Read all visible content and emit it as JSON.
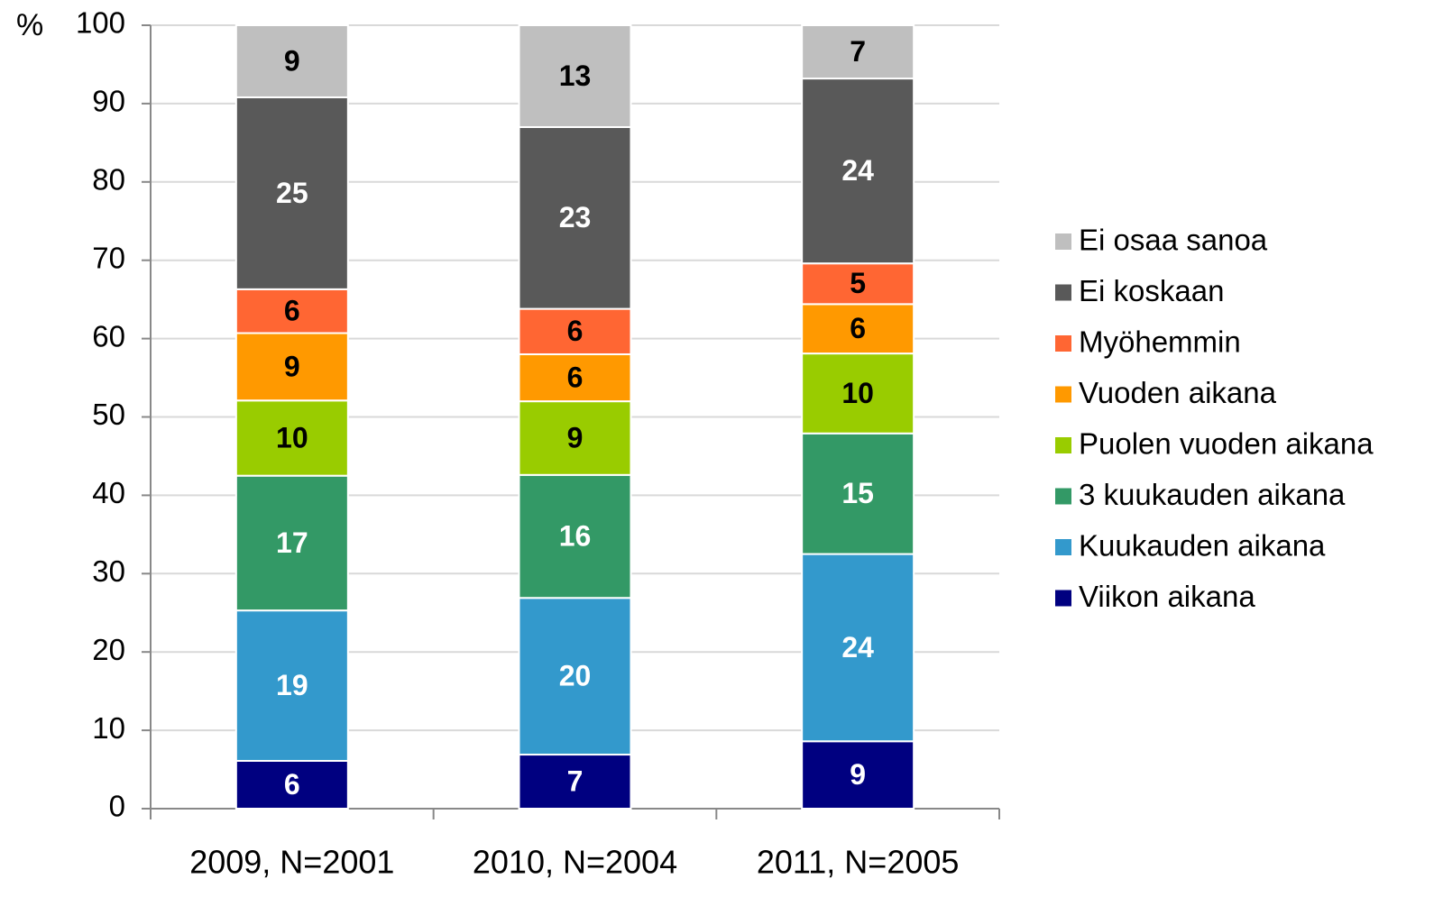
{
  "chart_data": {
    "type": "stacked_bar",
    "y_label": "%",
    "categories": [
      "2009, N=2001",
      "2010, N=2004",
      "2011, N=2005"
    ],
    "ylim": [
      0,
      100
    ],
    "yticks": [
      0,
      10,
      20,
      30,
      40,
      50,
      60,
      70,
      80,
      90,
      100
    ],
    "grid": true,
    "legend": "right",
    "series": [
      {
        "name": "Viikon aikana",
        "color": "#000080",
        "values": [
          6.1,
          6.9,
          8.6
        ],
        "value_labels": [
          "6",
          "7",
          "9"
        ]
      },
      {
        "name": "Kuukauden aikana",
        "color": "#3399cc",
        "values": [
          19.2,
          20.0,
          23.9
        ],
        "value_labels": [
          "19",
          "20",
          "24"
        ]
      },
      {
        "name": "3 kuukauden aikana",
        "color": "#339966",
        "values": [
          17.2,
          15.7,
          15.4
        ],
        "value_labels": [
          "17",
          "16",
          "15"
        ]
      },
      {
        "name": "Puolen vuoden aikana",
        "color": "#99cc00",
        "values": [
          9.6,
          9.4,
          10.2
        ],
        "value_labels": [
          "10",
          "9",
          "10"
        ]
      },
      {
        "name": "Vuoden aikana",
        "color": "#ff9900",
        "values": [
          8.6,
          6.0,
          6.3
        ],
        "value_labels": [
          "9",
          "6",
          "6"
        ]
      },
      {
        "name": "Myöhemmin",
        "color": "#ff6633",
        "values": [
          5.6,
          5.8,
          5.2
        ],
        "value_labels": [
          "6",
          "6",
          "5"
        ]
      },
      {
        "name": "Ei koskaan",
        "color": "#595959",
        "values": [
          24.5,
          23.2,
          23.6
        ],
        "value_labels": [
          "25",
          "23",
          "24"
        ]
      },
      {
        "name": "Ei osaa sanoa",
        "color": "#bfbfbf",
        "values": [
          9.2,
          13.0,
          6.8
        ],
        "value_labels": [
          "9",
          "13",
          "7"
        ]
      }
    ]
  }
}
